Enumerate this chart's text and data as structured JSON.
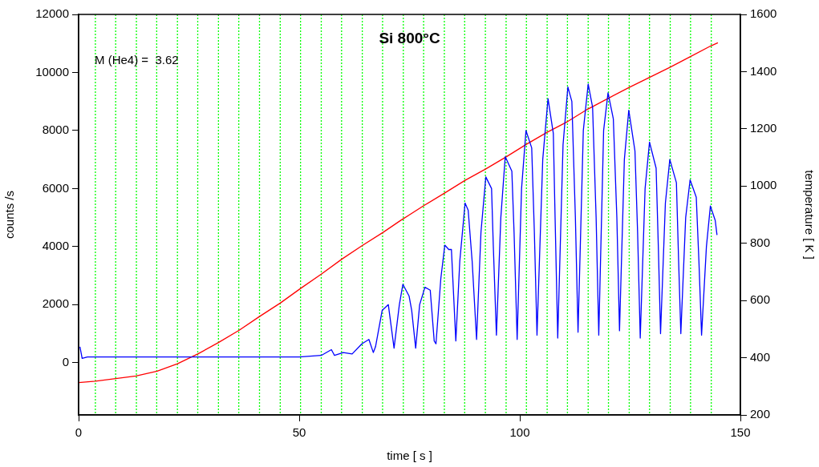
{
  "chart_data": {
    "type": "line",
    "title": "Si 800°C",
    "xlabel": "time [ s ]",
    "ylabel": "counts /s",
    "y2label": "temperature [ K ]",
    "annotations": [
      "M (He4) =  3.62"
    ],
    "xlim": [
      0,
      150
    ],
    "xticks": [
      0,
      50,
      100,
      150
    ],
    "ylim": [
      -1800,
      12000
    ],
    "yticks": [
      0,
      2000,
      4000,
      6000,
      8000,
      10000,
      12000
    ],
    "y2lim": [
      200,
      1600
    ],
    "y2ticks": [
      200,
      400,
      600,
      800,
      1000,
      1200,
      1400,
      1600
    ],
    "grid": false,
    "legend": false,
    "marker": "none",
    "line_style": "solid",
    "series": [
      {
        "color": "#0000ff",
        "x": [
          0.3,
          0.8,
          2,
          5,
          10,
          15,
          20,
          25,
          30,
          35,
          40,
          45,
          50,
          55,
          57.3,
          58,
          60,
          62,
          64.2,
          65.8,
          66.8,
          67.3,
          68.8,
          70.2,
          71.5,
          72.7,
          73.5,
          74.9,
          75.5,
          76.4,
          77.3,
          78.5,
          79.7,
          80.6,
          81,
          82.1,
          83.0,
          83.9,
          84.5,
          85.5,
          86.4,
          87.6,
          88.3,
          89.2,
          90.2,
          91.2,
          92.3,
          93.6,
          94.0,
          94.7,
          95.7,
          96.7,
          98.2,
          98.7,
          99.4,
          100.4,
          101.4,
          102.7,
          103.3,
          103.9,
          105.2,
          106.4,
          107.6,
          108.0,
          108.6,
          109.8,
          110.9,
          111.8,
          112.6,
          113.2,
          114.4,
          115.5,
          116.5,
          117.3,
          117.9,
          119.0,
          120.0,
          121.2,
          122.0,
          122.6,
          123.7,
          124.7,
          126.1,
          126.7,
          127.3,
          128.4,
          129.4,
          130.9,
          131.4,
          131.9,
          133.0,
          134.0,
          135.5,
          136.0,
          136.5,
          137.6,
          138.6,
          140.0,
          140.6,
          141.2,
          142.3,
          143.2,
          144.3,
          144.7
        ],
        "values": [
          550,
          150,
          200,
          200,
          200,
          200,
          200,
          200,
          200,
          200,
          200,
          200,
          200,
          250,
          450,
          250,
          350,
          300,
          650,
          800,
          350,
          550,
          1800,
          2000,
          500,
          2000,
          2700,
          2300,
          1800,
          500,
          2000,
          2600,
          2500,
          750,
          650,
          2900,
          4050,
          3900,
          3900,
          750,
          3500,
          5500,
          5250,
          3500,
          800,
          4500,
          6400,
          6000,
          4000,
          950,
          5000,
          7100,
          6600,
          4500,
          800,
          6000,
          8000,
          7400,
          4500,
          950,
          7000,
          9100,
          7900,
          5000,
          850,
          7500,
          9500,
          9000,
          5000,
          1050,
          8000,
          9600,
          8800,
          5000,
          950,
          8000,
          9300,
          8400,
          5000,
          1100,
          7000,
          8700,
          7300,
          4500,
          850,
          6000,
          7600,
          6700,
          4000,
          1000,
          5500,
          7000,
          6200,
          3500,
          1000,
          5000,
          6300,
          5700,
          3500,
          950,
          4000,
          5400,
          4900,
          4400
        ]
      },
      {
        "color": "#ff0000",
        "axis": "y2",
        "x": [
          0,
          3.8,
          8.4,
          13.0,
          17.8,
          22.4,
          27.1,
          31.7,
          36.4,
          41.0,
          45.7,
          50.3,
          55.0,
          59.7,
          64.3,
          69.0,
          73.0,
          78.3,
          83.0,
          87.6,
          92.3,
          96.9,
          101.5,
          106.2,
          110.9,
          115.3,
          120.1,
          124.7,
          129.4,
          134.0,
          138.6,
          143.3,
          144.9
        ],
        "values": [
          313,
          318,
          327,
          336,
          353,
          379,
          414,
          453,
          496,
          544,
          591,
          642,
          692,
          745,
          792,
          838,
          880,
          932,
          976,
          1020,
          1060,
          1102,
          1146,
          1188,
          1226,
          1268,
          1307,
          1344,
          1380,
          1415,
          1452,
          1490,
          1501
        ]
      }
    ],
    "ref_lines": [
      {
        "axis": "x",
        "value": 3.8,
        "color": "#00ff00",
        "line_style": "dotted"
      },
      {
        "axis": "x",
        "value": 8.4,
        "color": "#00ff00",
        "line_style": "dotted"
      },
      {
        "axis": "x",
        "value": 13.1,
        "color": "#00ff00",
        "line_style": "dotted"
      },
      {
        "axis": "x",
        "value": 17.7,
        "color": "#00ff00",
        "line_style": "dotted"
      },
      {
        "axis": "x",
        "value": 22.4,
        "color": "#00ff00",
        "line_style": "dotted"
      },
      {
        "axis": "x",
        "value": 27.0,
        "color": "#00ff00",
        "line_style": "dotted"
      },
      {
        "axis": "x",
        "value": 31.7,
        "color": "#00ff00",
        "line_style": "dotted"
      },
      {
        "axis": "x",
        "value": 36.3,
        "color": "#00ff00",
        "line_style": "dotted"
      },
      {
        "axis": "x",
        "value": 41.0,
        "color": "#00ff00",
        "line_style": "dotted"
      },
      {
        "axis": "x",
        "value": 45.7,
        "color": "#00ff00",
        "line_style": "dotted"
      },
      {
        "axis": "x",
        "value": 50.3,
        "color": "#00ff00",
        "line_style": "dotted"
      },
      {
        "axis": "x",
        "value": 55.0,
        "color": "#00ff00",
        "line_style": "dotted"
      },
      {
        "axis": "x",
        "value": 59.6,
        "color": "#00ff00",
        "line_style": "dotted"
      },
      {
        "axis": "x",
        "value": 64.3,
        "color": "#00ff00",
        "line_style": "dotted"
      },
      {
        "axis": "x",
        "value": 68.9,
        "color": "#00ff00",
        "line_style": "dotted"
      },
      {
        "axis": "x",
        "value": 73.6,
        "color": "#00ff00",
        "line_style": "dotted"
      },
      {
        "axis": "x",
        "value": 78.2,
        "color": "#00ff00",
        "line_style": "dotted"
      },
      {
        "axis": "x",
        "value": 82.9,
        "color": "#00ff00",
        "line_style": "dotted"
      },
      {
        "axis": "x",
        "value": 87.5,
        "color": "#00ff00",
        "line_style": "dotted"
      },
      {
        "axis": "x",
        "value": 92.2,
        "color": "#00ff00",
        "line_style": "dotted"
      },
      {
        "axis": "x",
        "value": 96.9,
        "color": "#00ff00",
        "line_style": "dotted"
      },
      {
        "axis": "x",
        "value": 101.5,
        "color": "#00ff00",
        "line_style": "dotted"
      },
      {
        "axis": "x",
        "value": 106.2,
        "color": "#00ff00",
        "line_style": "dotted"
      },
      {
        "axis": "x",
        "value": 110.8,
        "color": "#00ff00",
        "line_style": "dotted"
      },
      {
        "axis": "x",
        "value": 115.5,
        "color": "#00ff00",
        "line_style": "dotted"
      },
      {
        "axis": "x",
        "value": 120.1,
        "color": "#00ff00",
        "line_style": "dotted"
      },
      {
        "axis": "x",
        "value": 124.8,
        "color": "#00ff00",
        "line_style": "dotted"
      },
      {
        "axis": "x",
        "value": 129.4,
        "color": "#00ff00",
        "line_style": "dotted"
      },
      {
        "axis": "x",
        "value": 134.1,
        "color": "#00ff00",
        "line_style": "dotted"
      },
      {
        "axis": "x",
        "value": 138.7,
        "color": "#00ff00",
        "line_style": "dotted"
      },
      {
        "axis": "x",
        "value": 143.4,
        "color": "#00ff00",
        "line_style": "dotted"
      }
    ]
  }
}
